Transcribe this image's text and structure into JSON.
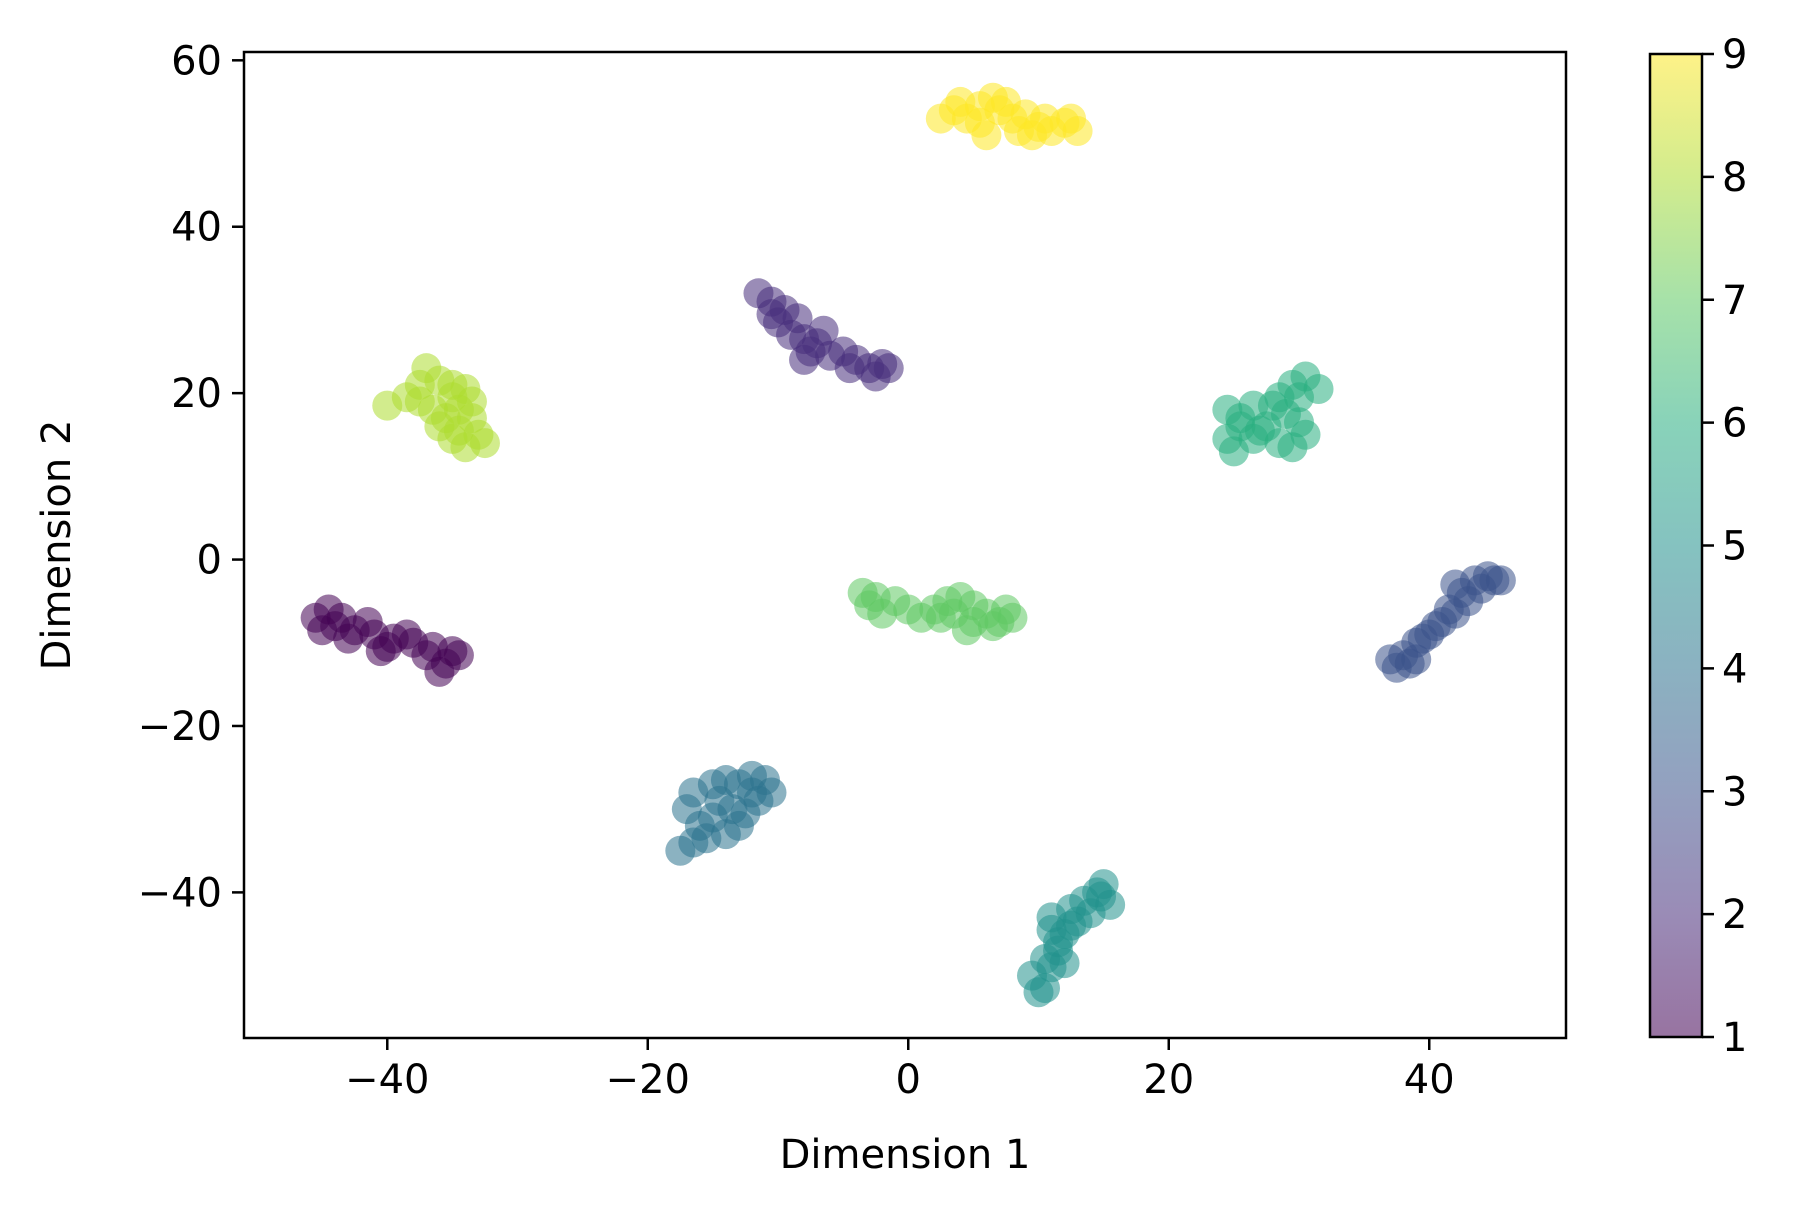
{
  "chart_data": {
    "type": "scatter",
    "title": "",
    "xlabel": "Dimension 1",
    "ylabel": "Dimension 2",
    "xlim": [
      -51,
      50.5
    ],
    "ylim": [
      -57.5,
      61
    ],
    "xticks": [
      -40,
      -20,
      0,
      20,
      40
    ],
    "yticks": [
      60,
      40,
      20,
      0,
      -20,
      -40
    ],
    "xtick_labels": [
      "−40",
      "−20",
      "0",
      "20",
      "40"
    ],
    "ytick_labels": [
      "60",
      "40",
      "20",
      "0",
      "−20",
      "−40"
    ],
    "grid": false,
    "marker_alpha": 0.55,
    "colorbar": {
      "label": "",
      "range": [
        1,
        9
      ],
      "ticks": [
        1,
        2,
        3,
        4,
        5,
        6,
        7,
        8,
        9
      ],
      "colormap": "viridis",
      "colors": [
        "#440154",
        "#472d7b",
        "#3b528b",
        "#2c728e",
        "#21918c",
        "#28ae80",
        "#5ec962",
        "#addc30",
        "#fde725"
      ]
    },
    "clusters": [
      {
        "value": 1,
        "color": "#440154",
        "points": [
          [
            -45.5,
            -7
          ],
          [
            -44,
            -8
          ],
          [
            -42.5,
            -8.5
          ],
          [
            -41,
            -9
          ],
          [
            -39.5,
            -9.5
          ],
          [
            -38,
            -10
          ],
          [
            -36.5,
            -10.5
          ],
          [
            -35,
            -11
          ],
          [
            -34.5,
            -11.5
          ],
          [
            -45,
            -8.5
          ],
          [
            -43,
            -9.5
          ],
          [
            -40,
            -10.5
          ],
          [
            -37,
            -11.5
          ],
          [
            -35.5,
            -12.5
          ],
          [
            -44.5,
            -6
          ],
          [
            -41.5,
            -7.5
          ],
          [
            -38.5,
            -9
          ],
          [
            -36,
            -13.5
          ],
          [
            -40.5,
            -11
          ],
          [
            -43.5,
            -7
          ]
        ]
      },
      {
        "value": 2,
        "color": "#472d7b",
        "points": [
          [
            -11.5,
            32
          ],
          [
            -10.5,
            31
          ],
          [
            -9.5,
            30
          ],
          [
            -8.5,
            29
          ],
          [
            -10,
            28.5
          ],
          [
            -9,
            27
          ],
          [
            -8,
            26.5
          ],
          [
            -7,
            26
          ],
          [
            -7.5,
            25
          ],
          [
            -6,
            24.5
          ],
          [
            -5,
            25
          ],
          [
            -4,
            24
          ],
          [
            -3,
            23
          ],
          [
            -2,
            23.5
          ],
          [
            -1.5,
            23
          ],
          [
            -2.5,
            22
          ],
          [
            -8,
            24
          ],
          [
            -10.5,
            29.5
          ],
          [
            -6.5,
            27.5
          ],
          [
            -4.5,
            23
          ]
        ]
      },
      {
        "value": 3,
        "color": "#3b528b",
        "points": [
          [
            37,
            -12
          ],
          [
            38,
            -11.5
          ],
          [
            39,
            -10
          ],
          [
            40,
            -9
          ],
          [
            41,
            -7.5
          ],
          [
            42,
            -6.5
          ],
          [
            43,
            -5
          ],
          [
            44,
            -3.5
          ],
          [
            45,
            -2.5
          ],
          [
            44.5,
            -2
          ],
          [
            43.5,
            -2.5
          ],
          [
            41.5,
            -6
          ],
          [
            39.5,
            -9.5
          ],
          [
            38.5,
            -12.5
          ],
          [
            42.5,
            -4
          ],
          [
            40.5,
            -8
          ],
          [
            37.5,
            -13
          ],
          [
            45.5,
            -2.5
          ],
          [
            42,
            -3
          ],
          [
            39,
            -12
          ]
        ]
      },
      {
        "value": 4,
        "color": "#2c728e",
        "points": [
          [
            -17.5,
            -35
          ],
          [
            -16.5,
            -34
          ],
          [
            -16,
            -32
          ],
          [
            -17,
            -30
          ],
          [
            -16.5,
            -28
          ],
          [
            -15,
            -27
          ],
          [
            -14,
            -26.5
          ],
          [
            -13,
            -27
          ],
          [
            -12,
            -26
          ],
          [
            -11,
            -26.5
          ],
          [
            -10.5,
            -28
          ],
          [
            -11.5,
            -29
          ],
          [
            -12.5,
            -30.5
          ],
          [
            -13,
            -32
          ],
          [
            -14,
            -33
          ],
          [
            -15,
            -31
          ],
          [
            -14.5,
            -29
          ],
          [
            -12,
            -28
          ],
          [
            -15.5,
            -33.5
          ],
          [
            -13.5,
            -30
          ]
        ]
      },
      {
        "value": 5,
        "color": "#21918c",
        "points": [
          [
            9.5,
            -50
          ],
          [
            10.5,
            -51.5
          ],
          [
            11,
            -49
          ],
          [
            11.5,
            -47
          ],
          [
            12,
            -45
          ],
          [
            11,
            -43
          ],
          [
            12.5,
            -42
          ],
          [
            13.5,
            -41
          ],
          [
            14.5,
            -40
          ],
          [
            15,
            -39
          ],
          [
            15.5,
            -41.5
          ],
          [
            14,
            -42.5
          ],
          [
            12.5,
            -44
          ],
          [
            11.5,
            -46
          ],
          [
            10.5,
            -48
          ],
          [
            12,
            -48.5
          ],
          [
            13,
            -43.5
          ],
          [
            11,
            -44.5
          ],
          [
            10,
            -52
          ],
          [
            14.8,
            -40.5
          ]
        ]
      },
      {
        "value": 6,
        "color": "#28ae80",
        "points": [
          [
            24.5,
            18
          ],
          [
            25.5,
            17
          ],
          [
            24.5,
            14.5
          ],
          [
            25,
            13
          ],
          [
            26.5,
            14.5
          ],
          [
            27.5,
            16
          ],
          [
            28.5,
            14
          ],
          [
            29.5,
            13.5
          ],
          [
            30.5,
            15
          ],
          [
            29,
            17.5
          ],
          [
            30,
            19.5
          ],
          [
            29.5,
            21
          ],
          [
            30.5,
            22
          ],
          [
            31.5,
            20.5
          ],
          [
            28,
            18.5
          ],
          [
            26.5,
            18.5
          ],
          [
            27,
            15.5
          ],
          [
            30,
            16.5
          ],
          [
            25.5,
            16
          ],
          [
            28.5,
            19.5
          ]
        ]
      },
      {
        "value": 7,
        "color": "#5ec962",
        "points": [
          [
            -3.5,
            -4
          ],
          [
            -3,
            -5.5
          ],
          [
            -2,
            -6.5
          ],
          [
            -1,
            -5
          ],
          [
            0,
            -6
          ],
          [
            1,
            -7
          ],
          [
            2,
            -6
          ],
          [
            3,
            -5
          ],
          [
            4,
            -4.5
          ],
          [
            5,
            -5.5
          ],
          [
            6,
            -6.5
          ],
          [
            7,
            -7.5
          ],
          [
            8,
            -7
          ],
          [
            7.5,
            -6
          ],
          [
            6.5,
            -8
          ],
          [
            5,
            -7.5
          ],
          [
            3.5,
            -6.5
          ],
          [
            -2.5,
            -4.5
          ],
          [
            4.5,
            -8.5
          ],
          [
            2.5,
            -7
          ]
        ]
      },
      {
        "value": 8,
        "color": "#addc30",
        "points": [
          [
            -40,
            18.5
          ],
          [
            -38.5,
            19.5
          ],
          [
            -37.5,
            21
          ],
          [
            -37,
            23
          ],
          [
            -36,
            21.5
          ],
          [
            -35,
            21
          ],
          [
            -34,
            20.5
          ],
          [
            -33.5,
            19
          ],
          [
            -34.5,
            18
          ],
          [
            -35.5,
            17
          ],
          [
            -34.5,
            15.5
          ],
          [
            -33,
            15
          ],
          [
            -32.5,
            14
          ],
          [
            -34,
            13.5
          ],
          [
            -35,
            14.5
          ],
          [
            -36.5,
            18
          ],
          [
            -37.5,
            19
          ],
          [
            -35,
            19.5
          ],
          [
            -33.5,
            17
          ],
          [
            -36,
            16
          ]
        ]
      },
      {
        "value": 9,
        "color": "#fde725",
        "points": [
          [
            2.5,
            53
          ],
          [
            3.5,
            54
          ],
          [
            4.5,
            53
          ],
          [
            5.5,
            54.5
          ],
          [
            6.5,
            55.5
          ],
          [
            7,
            54
          ],
          [
            8,
            53
          ],
          [
            9,
            53.5
          ],
          [
            10,
            52
          ],
          [
            11,
            51.5
          ],
          [
            12,
            52.5
          ],
          [
            13,
            51.5
          ],
          [
            12.5,
            53
          ],
          [
            6,
            51
          ],
          [
            8.5,
            51.5
          ],
          [
            5.5,
            52.5
          ],
          [
            7.5,
            55
          ],
          [
            10.5,
            53
          ],
          [
            4,
            55
          ],
          [
            9.5,
            51
          ]
        ]
      }
    ]
  }
}
